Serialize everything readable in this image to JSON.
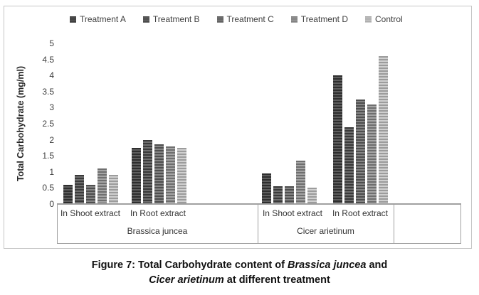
{
  "chart_data": {
    "type": "bar",
    "title": "",
    "ylabel": "Total Carbohydrate (mg/ml)",
    "xlabel": "",
    "ylim": [
      0,
      5
    ],
    "ytick_step": 0.5,
    "grid": false,
    "legend_position": "top",
    "sections": [
      {
        "label": "Brassica juncea",
        "categories": [
          "In Shoot extract",
          "In Root extract"
        ]
      },
      {
        "label": "Cicer arietinum",
        "categories": [
          "In Shoot extract",
          "In Root extract"
        ]
      },
      {
        "label": "",
        "categories": []
      }
    ],
    "series": [
      {
        "name": "Treatment A",
        "values": [
          0.6,
          1.75,
          0.95,
          4.0
        ],
        "color_dark": "#2e2e2e",
        "color_light": "#5e5e5e"
      },
      {
        "name": "Treatment B",
        "values": [
          0.9,
          2.0,
          0.55,
          2.4
        ],
        "color_dark": "#3a3a3a",
        "color_light": "#6f6f6f"
      },
      {
        "name": "Treatment C",
        "values": [
          0.6,
          1.85,
          0.55,
          3.25
        ],
        "color_dark": "#4f4f4f",
        "color_light": "#868686"
      },
      {
        "name": "Treatment D",
        "values": [
          1.1,
          1.8,
          1.35,
          3.1
        ],
        "color_dark": "#6f6f6f",
        "color_light": "#a5a5a5"
      },
      {
        "name": "Control",
        "values": [
          0.9,
          1.75,
          0.5,
          4.6
        ],
        "color_dark": "#9c9c9c",
        "color_light": "#d0d0d0"
      }
    ],
    "bar_pattern": "horizontal-stripes"
  },
  "axis_colors": {
    "line": "#a0a0a0",
    "frame": "#c6c6c6",
    "text": "#3f3f3f"
  },
  "caption": {
    "line1_prefix": "Figure 7: Total Carbohydrate content of ",
    "line1_species": "Brassica juncea",
    "line1_suffix": " and",
    "line2_species": "Cicer arietinum",
    "line2_suffix": " at different treatment"
  }
}
